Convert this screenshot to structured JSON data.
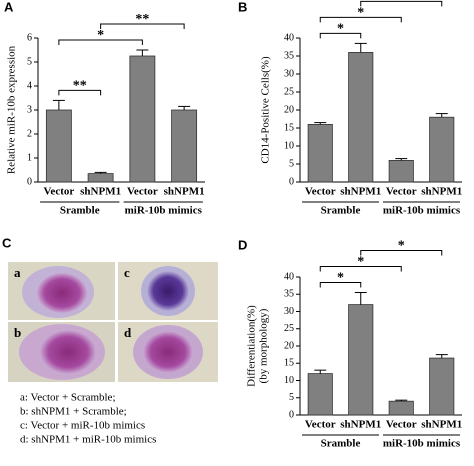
{
  "chart_data": [
    {
      "type": "bar",
      "panel": "A",
      "ylabel": [
        "Relative miR-10b expression"
      ],
      "categories": [
        "Vector",
        "shNPM1",
        "Vector",
        "shNPM1"
      ],
      "series": [
        {
          "color": "#808080",
          "values": [
            3.0,
            0.35,
            5.25,
            3.0
          ],
          "errors": [
            0.4,
            0.05,
            0.25,
            0.15
          ]
        }
      ],
      "groups": [
        {
          "name": "Sramble",
          "size": 2
        },
        {
          "name": "miR-10b mimics",
          "size": 2
        }
      ],
      "comparisons": [
        {
          "label": "**",
          "from": 0,
          "to": 1
        },
        {
          "label": "*",
          "from": 0,
          "to": 2
        },
        {
          "label": "**",
          "from": 1,
          "to": 3
        }
      ],
      "ylim": [
        0,
        6
      ],
      "yticks": [
        0,
        1,
        2,
        3,
        4,
        5,
        6
      ]
    },
    {
      "type": "bar",
      "panel": "B",
      "ylabel": [
        "CD14-Positive Cells(%)"
      ],
      "categories": [
        "Vector",
        "shNPM1",
        "Vector",
        "shNPM1"
      ],
      "series": [
        {
          "color": "#808080",
          "values": [
            16,
            36,
            6,
            18
          ],
          "errors": [
            0.5,
            2.5,
            0.5,
            1
          ]
        }
      ],
      "groups": [
        {
          "name": "Sramble",
          "size": 2
        },
        {
          "name": "miR-10b mimics",
          "size": 2
        }
      ],
      "comparisons": [
        {
          "label": "*",
          "from": 0,
          "to": 1
        },
        {
          "label": "*",
          "from": 0,
          "to": 2
        },
        {
          "label": "*",
          "from": 1,
          "to": 3
        }
      ],
      "ylim": [
        0,
        40
      ],
      "yticks": [
        0,
        5,
        10,
        15,
        20,
        25,
        30,
        35,
        40
      ]
    },
    {
      "type": "bar",
      "panel": "D",
      "ylabel": [
        "Differentiation(%)",
        "(by morphology)"
      ],
      "categories": [
        "Vector",
        "shNPM1",
        "Vector",
        "shNPM1"
      ],
      "series": [
        {
          "color": "#808080",
          "values": [
            12,
            32,
            4,
            16.5
          ],
          "errors": [
            1,
            3.5,
            0.3,
            1
          ]
        }
      ],
      "groups": [
        {
          "name": "Sramble",
          "size": 2
        },
        {
          "name": "miR-10b mimics",
          "size": 2
        }
      ],
      "comparisons": [
        {
          "label": "*",
          "from": 0,
          "to": 1
        },
        {
          "label": "*",
          "from": 0,
          "to": 2
        },
        {
          "label": "*",
          "from": 1,
          "to": 3
        }
      ],
      "ylim": [
        0,
        40
      ],
      "yticks": [
        0,
        5,
        10,
        15,
        20,
        25,
        30,
        35,
        40
      ]
    }
  ],
  "panel_c": {
    "panel": "C",
    "image_labels": [
      "a",
      "b",
      "c",
      "d"
    ],
    "legend": [
      "a: Vector + Scramble;",
      "b: shNPM1 + Scramble;",
      "c: Vector + miR-10b mimics",
      "d: shNPM1 + miR-10b mimics"
    ]
  }
}
